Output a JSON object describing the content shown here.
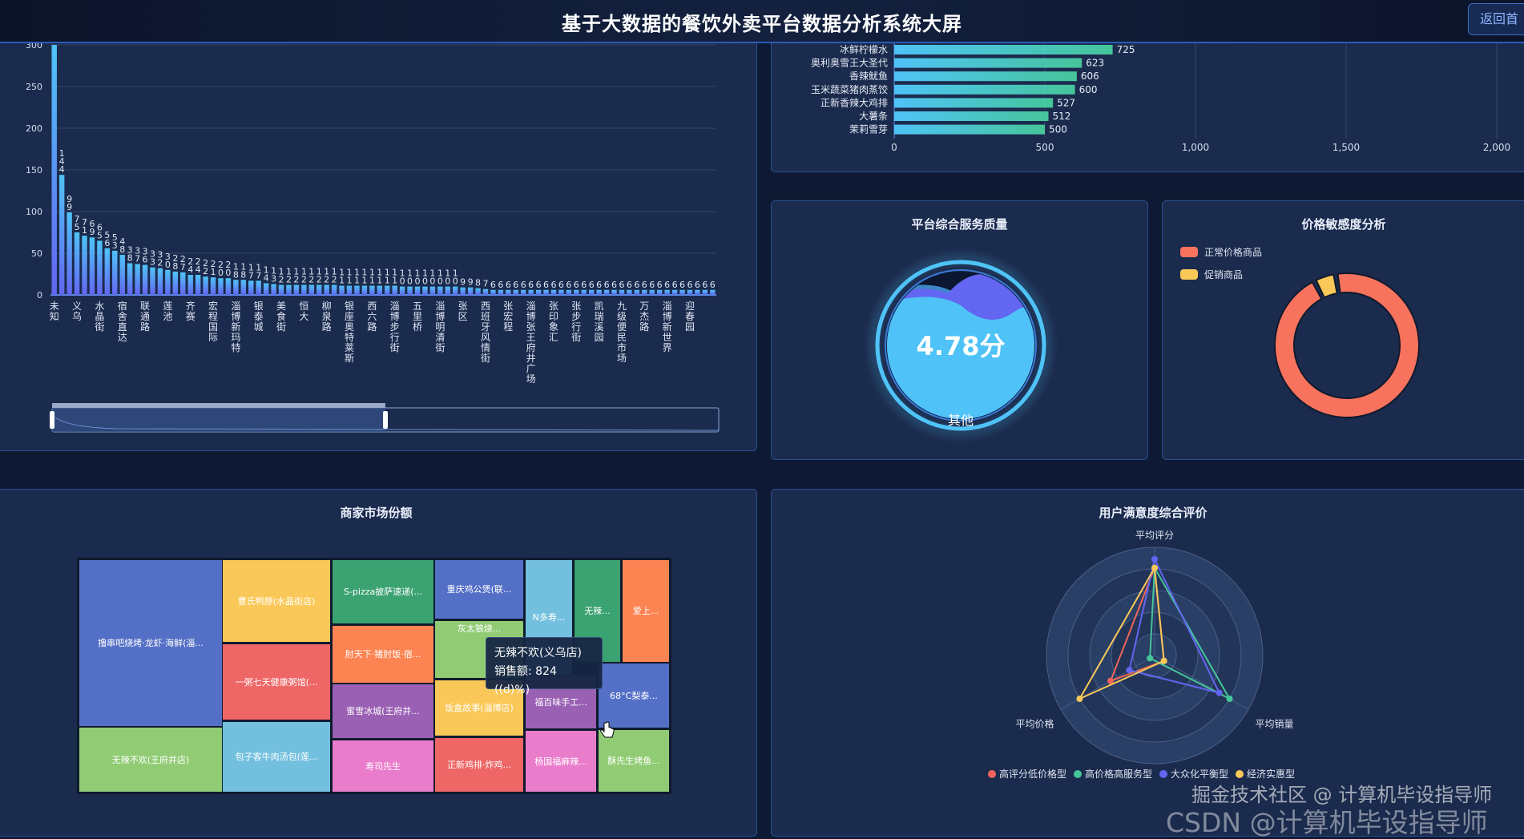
{
  "header": {
    "title": "基于大数据的餐饮外卖平台数据分析系统大屏",
    "back_button": "返回首"
  },
  "colors": {
    "background": "#0e1a33",
    "panel": "#1b2b4d",
    "panel_border": "#2c4f8f",
    "accent": "#4fc3f7"
  },
  "chart_data": [
    {
      "type": "bar",
      "id": "area-merchant-count",
      "title": "",
      "ylim": [
        0,
        300
      ],
      "yticks": [
        0,
        50,
        100,
        150,
        200,
        250,
        300
      ],
      "grid": true,
      "categories_shown": [
        "未知",
        "义乌",
        "水晶街",
        "宿舍直达",
        "联通路",
        "莲池",
        "齐赛",
        "宏程国际",
        "淄博新玛特",
        "银泰城",
        "美食街",
        "恒大",
        "柳泉路",
        "银座奥特莱斯",
        "西六路",
        "淄博步行街",
        "五里桥",
        "淄博明清街",
        "张区",
        "西班牙风情街",
        "张宏程",
        "淄博张王府井广场",
        "张印象汇",
        "张步行街",
        "凯瑞溪园",
        "九级便民市场",
        "万杰路",
        "淄博新世界",
        "迎春园"
      ],
      "values": [
        300,
        144,
        99,
        75,
        71,
        69,
        65,
        56,
        53,
        48,
        38,
        37,
        36,
        33,
        32,
        30,
        28,
        27,
        24,
        24,
        22,
        21,
        20,
        20,
        18,
        18,
        17,
        17,
        14,
        13,
        12,
        12,
        12,
        12,
        12,
        12,
        12,
        12,
        11,
        11,
        11,
        11,
        11,
        11,
        11,
        11,
        10,
        10,
        10,
        10,
        10,
        10,
        10,
        10,
        9,
        9,
        8,
        7,
        6,
        6,
        6,
        6,
        6,
        6,
        6,
        6,
        6,
        6,
        6,
        6,
        6,
        6,
        6,
        6,
        6,
        6,
        6,
        6,
        6,
        6,
        6,
        6,
        6,
        6,
        6,
        6,
        6,
        6
      ],
      "data_zoom": {
        "start_percent": 0,
        "end_percent": 50
      }
    },
    {
      "type": "bar",
      "orientation": "horizontal",
      "id": "top-dishes",
      "title": "",
      "xlim": [
        0,
        2000
      ],
      "xticks": [
        "0",
        "500",
        "1,000",
        "1,500",
        "2,000"
      ],
      "categories": [
        "冰鲜柠檬水",
        "奥利奥雪王大圣代",
        "香辣鱿鱼",
        "玉米蔬菜猪肉蒸饺",
        "正新香辣大鸡排",
        "大薯条",
        "茉莉雪芽"
      ],
      "values": [
        725,
        623,
        606,
        600,
        527,
        512,
        500
      ]
    },
    {
      "type": "gauge",
      "id": "service-quality",
      "title": "平台综合服务质量",
      "value_label": "4.78分",
      "name": "其他"
    },
    {
      "type": "pie",
      "id": "price-sensitivity",
      "title": "价格敏感度分析",
      "legend": [
        "正常价格商品",
        "促销商品"
      ],
      "values_percent": [
        95,
        5
      ],
      "colors": [
        "#f7735e",
        "#fac858"
      ],
      "legend_placement": "top-left"
    },
    {
      "type": "treemap",
      "id": "merchant-share",
      "title": "商家市场份额",
      "items": [
        {
          "name": "撸串吧烧烤·龙虾·海鲜(淄...",
          "color": "#5470c6"
        },
        {
          "name": "无辣不欢(王府井店)",
          "color": "#91cc75"
        },
        {
          "name": "曹氏鸭脖(水晶街店)",
          "color": "#fac858"
        },
        {
          "name": "一粥七天健康粥馆(...",
          "color": "#ee6666"
        },
        {
          "name": "包子客牛肉汤包(莲...",
          "color": "#73c0de"
        },
        {
          "name": "S-pizza披萨速递(...",
          "color": "#3ba272"
        },
        {
          "name": "肘天下·猪肘饭·宿...",
          "color": "#fc8452"
        },
        {
          "name": "蜜雪冰城(王府井...",
          "color": "#9a60b4"
        },
        {
          "name": "寿司先生",
          "color": "#ea7ccc"
        },
        {
          "name": "重庆鸡公煲(联...",
          "color": "#5470c6"
        },
        {
          "name": "灰太狼烧...",
          "color": "#91cc75"
        },
        {
          "name": "饭盒故事(淄博店)",
          "color": "#fac858"
        },
        {
          "name": "正新鸡排·炸鸡...",
          "color": "#ee6666"
        },
        {
          "name": "N多寿...",
          "color": "#73c0de"
        },
        {
          "name": "无辣...",
          "color": "#3ba272"
        },
        {
          "name": "爱上...",
          "color": "#fc8452"
        },
        {
          "name": "68°C梨泰...",
          "color": "#5470c6"
        },
        {
          "name": "福百味手工...",
          "color": "#9a60b4"
        },
        {
          "name": "杨国福麻辣...",
          "color": "#ea7ccc"
        },
        {
          "name": "酥先生烤鱼...",
          "color": "#91cc75"
        }
      ],
      "tooltip": {
        "title": "无辣不欢(义乌店)",
        "line": "销售额: 824 ((d)%)"
      }
    },
    {
      "type": "radar",
      "id": "user-satisfaction",
      "title": "用户满意度综合评价",
      "indicators": [
        "平均评分",
        "平均价格",
        "平均销量"
      ],
      "legend_placement": "bottom",
      "series": [
        {
          "name": "高评分低价格型",
          "color": "#f0655a",
          "values": [
            0.81,
            0.47,
            0.1
          ]
        },
        {
          "name": "高价格高服务型",
          "color": "#46c59a",
          "values": [
            0.81,
            0.05,
            0.8
          ]
        },
        {
          "name": "大众化平衡型",
          "color": "#6366f1",
          "values": [
            0.89,
            0.27,
            0.69
          ]
        },
        {
          "name": "经济实惠型",
          "color": "#fac858",
          "values": [
            0.81,
            0.8,
            0.1
          ]
        }
      ]
    }
  ],
  "watermark": {
    "line1": "掘金技术社区 @ 计算机毕设指导师",
    "line2": "CSDN @计算机毕设指导师"
  }
}
